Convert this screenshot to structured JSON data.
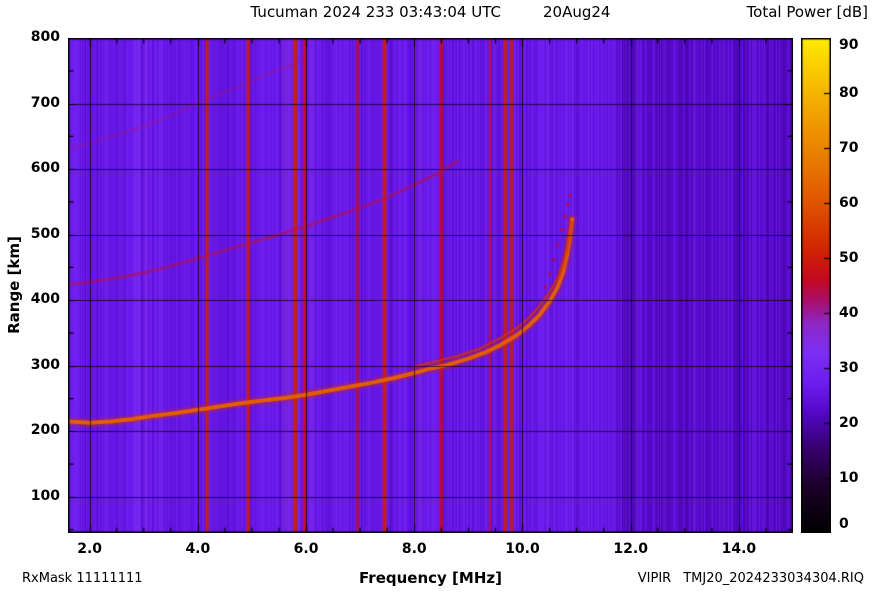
{
  "header": {
    "title": "Tucuman 2024 233 03:43:04 UTC",
    "date": "20Aug24",
    "colorbar_title": "Total Power [dB]"
  },
  "footer": {
    "rxmask": "RxMask 11111111",
    "instrument": "VIPIR",
    "filename": "TMJ20_2024233034304.RIQ"
  },
  "chart_data": {
    "type": "heatmap",
    "title": "Tucuman 2024 233 03:43:04 UTC  20Aug24",
    "xlabel": "Frequency [MHz]",
    "ylabel": "Range [km]",
    "xlim": [
      1.6,
      15.0
    ],
    "ylim": [
      45,
      800
    ],
    "x_ticks": [
      2.0,
      4.0,
      6.0,
      8.0,
      10.0,
      12.0,
      14.0
    ],
    "x_tick_labels": [
      "2.0",
      "4.0",
      "6.0",
      "8.0",
      "10.0",
      "12.0",
      "14.0"
    ],
    "y_ticks": [
      100,
      200,
      300,
      400,
      500,
      600,
      700,
      800
    ],
    "grid": true,
    "legend_position": "none",
    "colorbar": {
      "label": "Total Power [dB]",
      "min": 0,
      "max": 90,
      "ticks": [
        0,
        10,
        20,
        30,
        40,
        50,
        60,
        70,
        80,
        90
      ]
    },
    "colormap_stops": [
      [
        0,
        "#000000"
      ],
      [
        8,
        "#1a0026"
      ],
      [
        15,
        "#36006a"
      ],
      [
        22,
        "#5408c8"
      ],
      [
        27,
        "#6c1cee"
      ],
      [
        33,
        "#7d2ff2"
      ],
      [
        38,
        "#8c28c8"
      ],
      [
        42,
        "#a81070"
      ],
      [
        46,
        "#c40820"
      ],
      [
        52,
        "#d22800"
      ],
      [
        60,
        "#e05400"
      ],
      [
        68,
        "#e87c00"
      ],
      [
        76,
        "#f0a000"
      ],
      [
        83,
        "#f8c400"
      ],
      [
        90,
        "#ffec00"
      ]
    ],
    "background_db": 26,
    "noise_db": 2.2,
    "dark_region": {
      "from": 11.72,
      "to": 15.0,
      "db": 23.0,
      "noise_db": 3.2
    },
    "rfi_stripes": [
      {
        "f": 2.32,
        "w": 0.05,
        "db": 32,
        "alpha": 0.55
      },
      {
        "f": 2.56,
        "w": 0.04,
        "db": 31,
        "alpha": 0.5
      },
      {
        "f": 2.88,
        "w": 0.12,
        "db": 33,
        "alpha": 0.6
      },
      {
        "f": 3.04,
        "w": 0.06,
        "db": 34,
        "alpha": 0.6
      },
      {
        "f": 3.31,
        "w": 0.05,
        "db": 32,
        "alpha": 0.5
      },
      {
        "f": 4.17,
        "w": 0.06,
        "db": 50,
        "alpha": 0.92
      },
      {
        "f": 4.93,
        "w": 0.06,
        "db": 50,
        "alpha": 0.92
      },
      {
        "f": 5.72,
        "w": 0.34,
        "db": 35,
        "alpha": 0.55
      },
      {
        "f": 5.8,
        "w": 0.07,
        "db": 50,
        "alpha": 0.92
      },
      {
        "f": 5.97,
        "w": 0.06,
        "db": 48,
        "alpha": 0.9
      },
      {
        "f": 6.1,
        "w": 0.1,
        "db": 34,
        "alpha": 0.55
      },
      {
        "f": 6.55,
        "w": 0.05,
        "db": 33,
        "alpha": 0.5
      },
      {
        "f": 6.95,
        "w": 0.05,
        "db": 47,
        "alpha": 0.85
      },
      {
        "f": 7.45,
        "w": 0.07,
        "db": 50,
        "alpha": 0.92
      },
      {
        "f": 8.1,
        "w": 0.08,
        "db": 34,
        "alpha": 0.5
      },
      {
        "f": 8.5,
        "w": 0.07,
        "db": 46,
        "alpha": 0.85
      },
      {
        "f": 9.4,
        "w": 0.05,
        "db": 44,
        "alpha": 0.8
      },
      {
        "f": 9.68,
        "w": 0.06,
        "db": 50,
        "alpha": 0.92
      },
      {
        "f": 9.8,
        "w": 0.06,
        "db": 49,
        "alpha": 0.9
      },
      {
        "f": 10.47,
        "w": 0.06,
        "db": 33,
        "alpha": 0.5
      },
      {
        "f": 10.93,
        "w": 0.05,
        "db": 32,
        "alpha": 0.45
      },
      {
        "f": 11.15,
        "w": 0.04,
        "db": 31,
        "alpha": 0.4
      },
      {
        "f": 11.9,
        "w": 0.1,
        "db": 20,
        "alpha": 0.5
      },
      {
        "f": 12.12,
        "w": 0.08,
        "db": 30,
        "alpha": 0.45
      },
      {
        "f": 12.35,
        "w": 0.1,
        "db": 21,
        "alpha": 0.5
      },
      {
        "f": 12.62,
        "w": 0.08,
        "db": 29,
        "alpha": 0.4
      },
      {
        "f": 12.9,
        "w": 0.1,
        "db": 20,
        "alpha": 0.5
      },
      {
        "f": 13.18,
        "w": 0.08,
        "db": 30,
        "alpha": 0.4
      },
      {
        "f": 13.45,
        "w": 0.1,
        "db": 21,
        "alpha": 0.5
      },
      {
        "f": 13.72,
        "w": 0.08,
        "db": 29,
        "alpha": 0.4
      },
      {
        "f": 14.0,
        "w": 0.1,
        "db": 20,
        "alpha": 0.5
      },
      {
        "f": 14.28,
        "w": 0.08,
        "db": 30,
        "alpha": 0.4
      },
      {
        "f": 14.55,
        "w": 0.1,
        "db": 21,
        "alpha": 0.5
      },
      {
        "f": 14.8,
        "w": 0.08,
        "db": 20,
        "alpha": 0.45
      }
    ],
    "traces": [
      {
        "name": "first-hop-echo",
        "style": "line",
        "db": 62,
        "width": 4,
        "alpha": 1,
        "points": [
          [
            1.6,
            215
          ],
          [
            2.0,
            213
          ],
          [
            2.4,
            215
          ],
          [
            2.8,
            219
          ],
          [
            3.2,
            224
          ],
          [
            3.6,
            228
          ],
          [
            4.0,
            233
          ],
          [
            4.4,
            238
          ],
          [
            4.8,
            243
          ],
          [
            5.2,
            247
          ],
          [
            5.6,
            251
          ],
          [
            6.0,
            256
          ],
          [
            6.4,
            262
          ],
          [
            6.8,
            268
          ],
          [
            7.2,
            274
          ],
          [
            7.6,
            281
          ],
          [
            8.0,
            289
          ],
          [
            8.3,
            296
          ],
          [
            8.6,
            301
          ],
          [
            9.0,
            311
          ],
          [
            9.3,
            320
          ],
          [
            9.6,
            332
          ],
          [
            9.9,
            347
          ],
          [
            10.1,
            360
          ],
          [
            10.3,
            376
          ],
          [
            10.5,
            398
          ],
          [
            10.65,
            420
          ],
          [
            10.75,
            443
          ],
          [
            10.82,
            468
          ],
          [
            10.87,
            492
          ],
          [
            10.9,
            512
          ],
          [
            10.92,
            524
          ]
        ]
      },
      {
        "name": "first-hop-upper-branch",
        "style": "line",
        "db": 55,
        "width": 2,
        "alpha": 0.7,
        "points": [
          [
            8.0,
            299
          ],
          [
            8.4,
            307
          ],
          [
            8.8,
            315
          ],
          [
            9.2,
            326
          ],
          [
            9.6,
            343
          ],
          [
            9.9,
            358
          ],
          [
            10.1,
            372
          ],
          [
            10.3,
            390
          ],
          [
            10.5,
            412
          ],
          [
            10.65,
            434
          ],
          [
            10.75,
            456
          ],
          [
            10.82,
            480
          ],
          [
            10.87,
            502
          ],
          [
            10.9,
            518
          ]
        ]
      },
      {
        "name": "second-hop-echo",
        "style": "line",
        "db": 45,
        "width": 3,
        "alpha": 0.5,
        "points": [
          [
            1.6,
            424
          ],
          [
            2.0,
            428
          ],
          [
            2.5,
            434
          ],
          [
            3.0,
            442
          ],
          [
            3.5,
            452
          ],
          [
            4.0,
            464
          ],
          [
            4.5,
            476
          ],
          [
            5.0,
            488
          ],
          [
            5.5,
            500
          ],
          [
            6.0,
            513
          ],
          [
            6.5,
            527
          ],
          [
            7.0,
            541
          ],
          [
            7.5,
            557
          ],
          [
            8.0,
            576
          ],
          [
            8.4,
            592
          ],
          [
            8.8,
            612
          ]
        ]
      },
      {
        "name": "third-hop-echo",
        "style": "line",
        "db": 42,
        "width": 2.5,
        "alpha": 0.35,
        "points": [
          [
            1.6,
            630
          ],
          [
            2.0,
            640
          ],
          [
            2.5,
            652
          ],
          [
            3.0,
            665
          ],
          [
            3.5,
            682
          ],
          [
            4.0,
            700
          ],
          [
            4.4,
            714
          ],
          [
            4.8,
            728
          ],
          [
            5.2,
            742
          ],
          [
            5.6,
            755
          ],
          [
            5.9,
            764
          ]
        ]
      },
      {
        "name": "cusp-dotted-branch",
        "style": "dots",
        "db": 46,
        "size": 1.6,
        "alpha": 0.85,
        "points": [
          [
            10.42,
            420
          ],
          [
            10.5,
            440
          ],
          [
            10.58,
            462
          ],
          [
            10.66,
            485
          ],
          [
            10.73,
            508
          ],
          [
            10.79,
            528
          ],
          [
            10.84,
            546
          ],
          [
            10.88,
            560
          ]
        ]
      }
    ]
  }
}
